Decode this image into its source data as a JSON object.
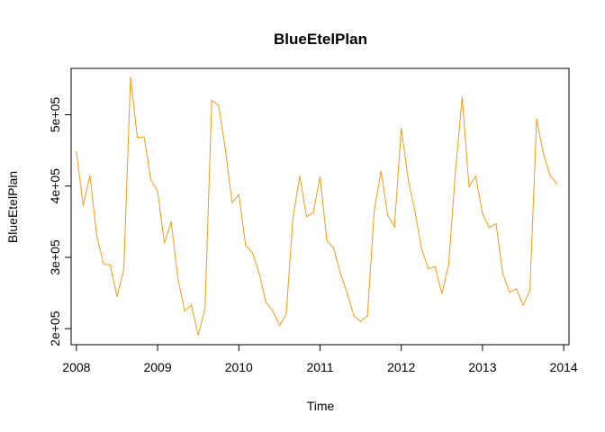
{
  "chart_data": {
    "type": "line",
    "title": "BlueEtelPlan",
    "xlabel": "Time",
    "ylabel": "BlueEtelPlan",
    "xlim": [
      2007.935,
      2014.065
    ],
    "ylim": [
      177500,
      565000
    ],
    "x_ticks": [
      2008,
      2009,
      2010,
      2011,
      2012,
      2013,
      2014
    ],
    "x_tick_labels": [
      "2008",
      "2009",
      "2010",
      "2011",
      "2012",
      "2013",
      "2014"
    ],
    "y_ticks": [
      200000,
      300000,
      400000,
      500000
    ],
    "y_tick_labels": [
      "2e+05",
      "3e+05",
      "4e+05",
      "5e+05"
    ],
    "grid": false,
    "color": "#f39c12",
    "start": 2008,
    "frequency": 12,
    "series": [
      {
        "values": [
          448000,
          373000,
          415000,
          331000,
          291000,
          289000,
          245000,
          283000,
          553000,
          468000,
          469000,
          409000,
          393000,
          320000,
          350000,
          270000,
          225000,
          233000,
          191000,
          228000,
          520000,
          513000,
          453000,
          377000,
          388000,
          317000,
          307000,
          278000,
          237000,
          225000,
          205000,
          220000,
          356000,
          414000,
          357000,
          363000,
          413000,
          324000,
          313000,
          278000,
          250000,
          218000,
          210000,
          218000,
          365000,
          421000,
          359000,
          343000,
          481000,
          410000,
          366000,
          312000,
          284000,
          287000,
          249000,
          290000,
          420000,
          525000,
          399000,
          414000,
          361000,
          342000,
          347000,
          277000,
          251000,
          256000,
          233000,
          253000,
          494000,
          445000,
          415000,
          403000
        ]
      }
    ]
  }
}
